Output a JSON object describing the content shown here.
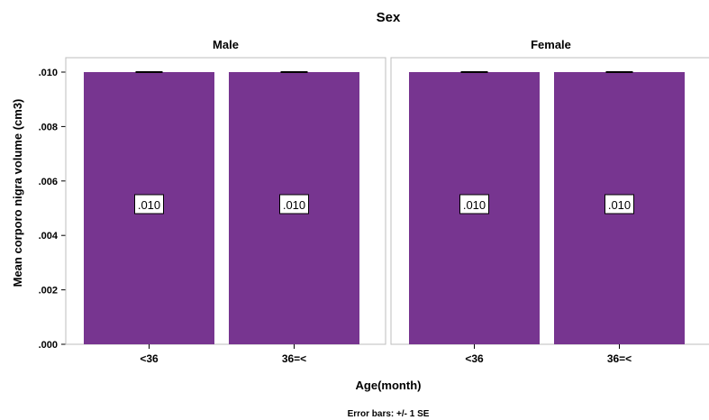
{
  "chart_data": {
    "type": "bar",
    "title": "Sex",
    "xlabel": "Age(month)",
    "ylabel": "Mean corporo nigra volume (cm3)",
    "footnote": "Error bars: +/- 1 SE",
    "panels": [
      "Male",
      "Female"
    ],
    "categories": [
      "<36",
      "36=<"
    ],
    "series": [
      {
        "panel": "Male",
        "values": [
          0.01,
          0.01
        ],
        "labels": [
          ".010",
          ".010"
        ]
      },
      {
        "panel": "Female",
        "values": [
          0.01,
          0.01
        ],
        "labels": [
          ".010",
          ".010"
        ]
      }
    ],
    "ylim": [
      0,
      0.01
    ],
    "yticks": [
      ".000",
      ".002",
      ".004",
      ".006",
      ".008",
      ".010"
    ],
    "bar_color": "#773590",
    "grid": false
  }
}
